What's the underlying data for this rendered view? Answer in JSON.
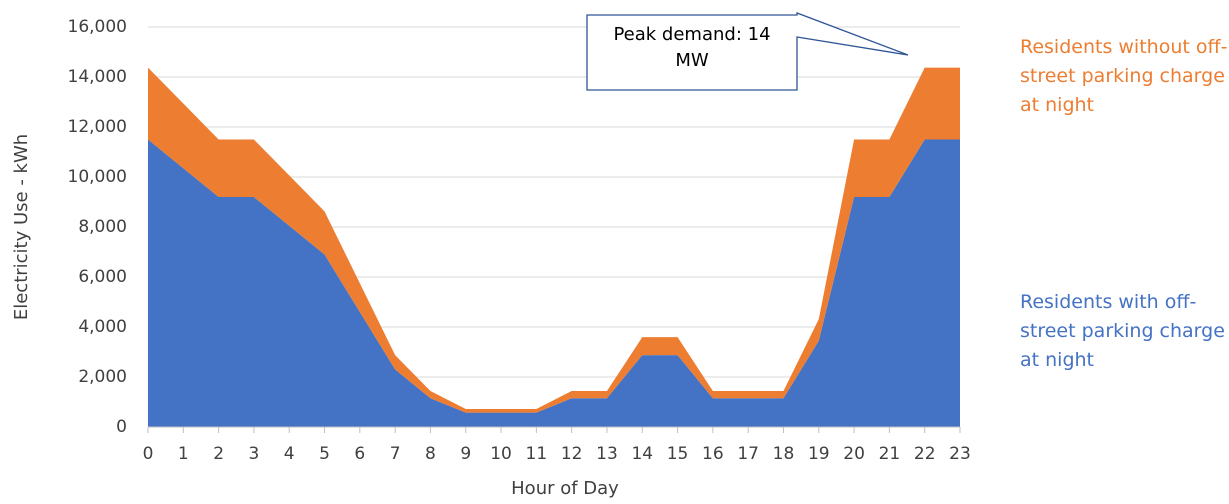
{
  "chart_data": {
    "type": "stacked_area",
    "x_label": "Hour of Day",
    "y_label": "Electricity Use - kWh",
    "annotation": "Peak demand: 14 MW",
    "x": [
      0,
      1,
      2,
      3,
      4,
      5,
      6,
      7,
      8,
      9,
      10,
      11,
      12,
      13,
      14,
      15,
      16,
      17,
      18,
      19,
      20,
      21,
      22,
      23
    ],
    "series": [
      {
        "name": "Residents with off-street parking charge at night",
        "color": "#4472c4",
        "values": [
          11500,
          10350,
          9200,
          9200,
          8050,
          6900,
          4600,
          2300,
          1150,
          575,
          575,
          575,
          1150,
          1150,
          2875,
          2875,
          1150,
          1150,
          1150,
          3450,
          9200,
          9200,
          11500,
          11500
        ]
      },
      {
        "name": "Residents without off-street parking charge at night",
        "color": "#ed7d31",
        "values": [
          2875,
          2588,
          2300,
          2300,
          2013,
          1725,
          1150,
          575,
          288,
          144,
          144,
          144,
          288,
          288,
          719,
          719,
          288,
          288,
          288,
          863,
          2300,
          2300,
          2875,
          2875
        ]
      }
    ],
    "xlim": [
      0,
      23
    ],
    "xticks": [
      0,
      1,
      2,
      3,
      4,
      5,
      6,
      7,
      8,
      9,
      10,
      11,
      12,
      13,
      14,
      15,
      16,
      17,
      18,
      19,
      20,
      21,
      22,
      23
    ],
    "ylim": [
      0,
      16000
    ],
    "yticks": [
      0,
      {
        "value": 2000,
        "label": "2,000"
      },
      {
        "value": 4000,
        "label": "4,000"
      },
      {
        "value": 6000,
        "label": "6,000"
      },
      {
        "value": 8000,
        "label": "8,000"
      },
      {
        "value": 10000,
        "label": "10,000"
      },
      {
        "value": 12000,
        "label": "12,000"
      },
      {
        "value": 14000,
        "label": "14,000"
      },
      {
        "value": 16000,
        "label": "16,000"
      }
    ],
    "grid": true
  }
}
